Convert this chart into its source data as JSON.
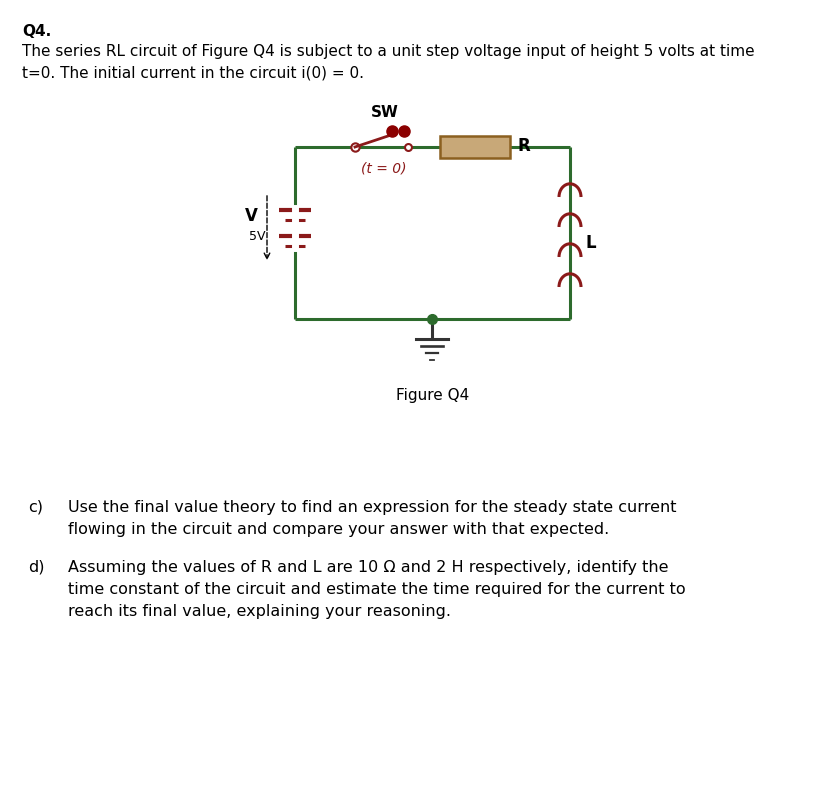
{
  "bg_color": "#ffffff",
  "title_line1": "Q4.",
  "title_line2": "The series RL circuit of Figure Q4 is subject to a unit step voltage input of height 5 volts at time",
  "title_line3": "t=0. The initial current in the circuit i(0) = 0.",
  "figure_label": "Figure Q4",
  "sw_label": "SW",
  "r_label": "R",
  "l_label": "L",
  "v_label": "V",
  "v_value": "5V",
  "t_label": "(t = 0)",
  "circuit_color": "#2d6b2d",
  "component_color": "#8b1a1a",
  "resistor_fill": "#c8a878",
  "resistor_edge": "#8b6020",
  "question_c_label": "c)",
  "question_c_text1": "Use the final value theory to find an expression for the steady state current",
  "question_c_text2": "flowing in the circuit and compare your answer with that expected.",
  "question_d_label": "d)",
  "question_d_text1": "Assuming the values of R and L are 10 Ω and 2 H respectively, identify the",
  "question_d_text2": "time constant of the circuit and estimate the time required for the current to",
  "question_d_text3": "reach its final value, explaining your reasoning."
}
